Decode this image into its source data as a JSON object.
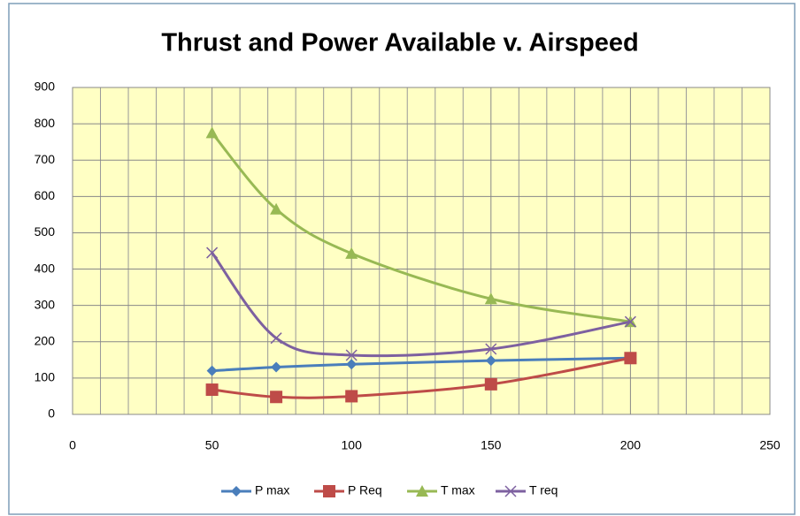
{
  "chart_data": {
    "type": "line",
    "title": "Thrust and Power Available v. Airspeed",
    "xlim": [
      0,
      250
    ],
    "xticks": [
      0,
      50,
      100,
      150,
      200,
      250
    ],
    "xminorticks": [
      10,
      20,
      30,
      40,
      60,
      70,
      80,
      90,
      110,
      120,
      130,
      140,
      160,
      170,
      180,
      190,
      210,
      220,
      230,
      240
    ],
    "ylim": [
      0,
      900
    ],
    "yticks": [
      0,
      100,
      200,
      300,
      400,
      500,
      600,
      700,
      800,
      900
    ],
    "grid": true,
    "legend": "bottom",
    "smooth": true,
    "x": [
      50,
      73,
      100,
      150,
      200
    ],
    "series": [
      {
        "name": "P max",
        "color": "#4a7ebb",
        "marker": "diamond",
        "values": [
          120,
          130,
          138,
          148,
          155
        ]
      },
      {
        "name": "P Req",
        "color": "#be4b48",
        "marker": "square",
        "values": [
          68,
          48,
          50,
          83,
          155
        ]
      },
      {
        "name": "T max",
        "color": "#98b954",
        "marker": "triangle",
        "values": [
          775,
          565,
          443,
          318,
          255
        ]
      },
      {
        "name": "T req",
        "color": "#7d60a0",
        "marker": "x",
        "values": [
          445,
          210,
          163,
          180,
          255
        ]
      }
    ]
  }
}
